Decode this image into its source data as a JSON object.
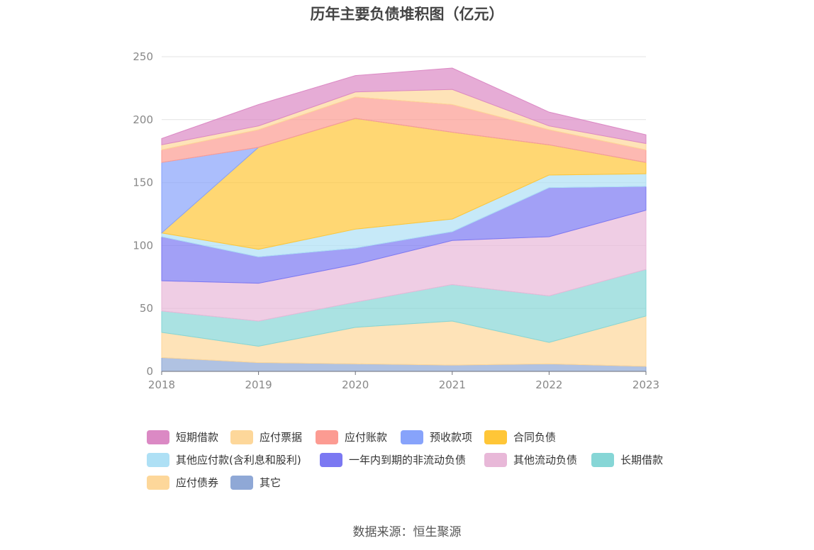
{
  "title": "历年主要负债堆积图（亿元）",
  "source": "数据来源：恒生聚源",
  "chart_data": {
    "type": "area",
    "stacked": true,
    "title": "历年主要负债堆积图（亿元）",
    "x": [
      "2018",
      "2019",
      "2020",
      "2021",
      "2022",
      "2023"
    ],
    "ylim": [
      0,
      250
    ],
    "yticks": [
      0,
      50,
      100,
      150,
      200,
      250
    ],
    "grid": true,
    "legend_position": "bottom",
    "series": [
      {
        "name": "其它",
        "color": "#8fa8d6",
        "values": [
          11,
          7,
          6,
          5,
          6,
          4
        ]
      },
      {
        "name": "应付债券",
        "color": "#fdd79a",
        "values": [
          20,
          13,
          29,
          35,
          17,
          40
        ]
      },
      {
        "name": "长期借款",
        "color": "#86d6d6",
        "values": [
          17,
          20,
          20,
          29,
          37,
          37
        ]
      },
      {
        "name": "其他流动负债",
        "color": "#e8b8d8",
        "values": [
          24,
          30,
          30,
          35,
          47,
          47
        ]
      },
      {
        "name": "一年内到期的非流动负债",
        "color": "#7b78f2",
        "values": [
          35,
          21,
          13,
          7,
          39,
          19
        ]
      },
      {
        "name": "其他应付款(含利息和股利)",
        "color": "#aee0f5",
        "values": [
          3,
          6,
          15,
          10,
          10,
          10
        ]
      },
      {
        "name": "合同负债",
        "color": "#ffc637",
        "values": [
          0,
          81,
          88,
          69,
          24,
          9
        ]
      },
      {
        "name": "预收款项",
        "color": "#87a3fb",
        "values": [
          56,
          0,
          0,
          0,
          0,
          0
        ]
      },
      {
        "name": "应付账款",
        "color": "#fc9b92",
        "values": [
          10,
          14,
          17,
          22,
          12,
          10
        ]
      },
      {
        "name": "应付票据",
        "color": "#fdd79a",
        "values": [
          4,
          3,
          4,
          12,
          3,
          5
        ]
      },
      {
        "name": "短期借款",
        "color": "#db89c4",
        "values": [
          5,
          17,
          13,
          17,
          11,
          7
        ]
      }
    ],
    "legend_order": [
      "短期借款",
      "应付票据",
      "应付账款",
      "预收款项",
      "合同负债",
      "其他应付款(含利息和股利)",
      "一年内到期的非流动负债",
      "其他流动负债",
      "长期借款",
      "应付债券",
      "其它"
    ]
  }
}
